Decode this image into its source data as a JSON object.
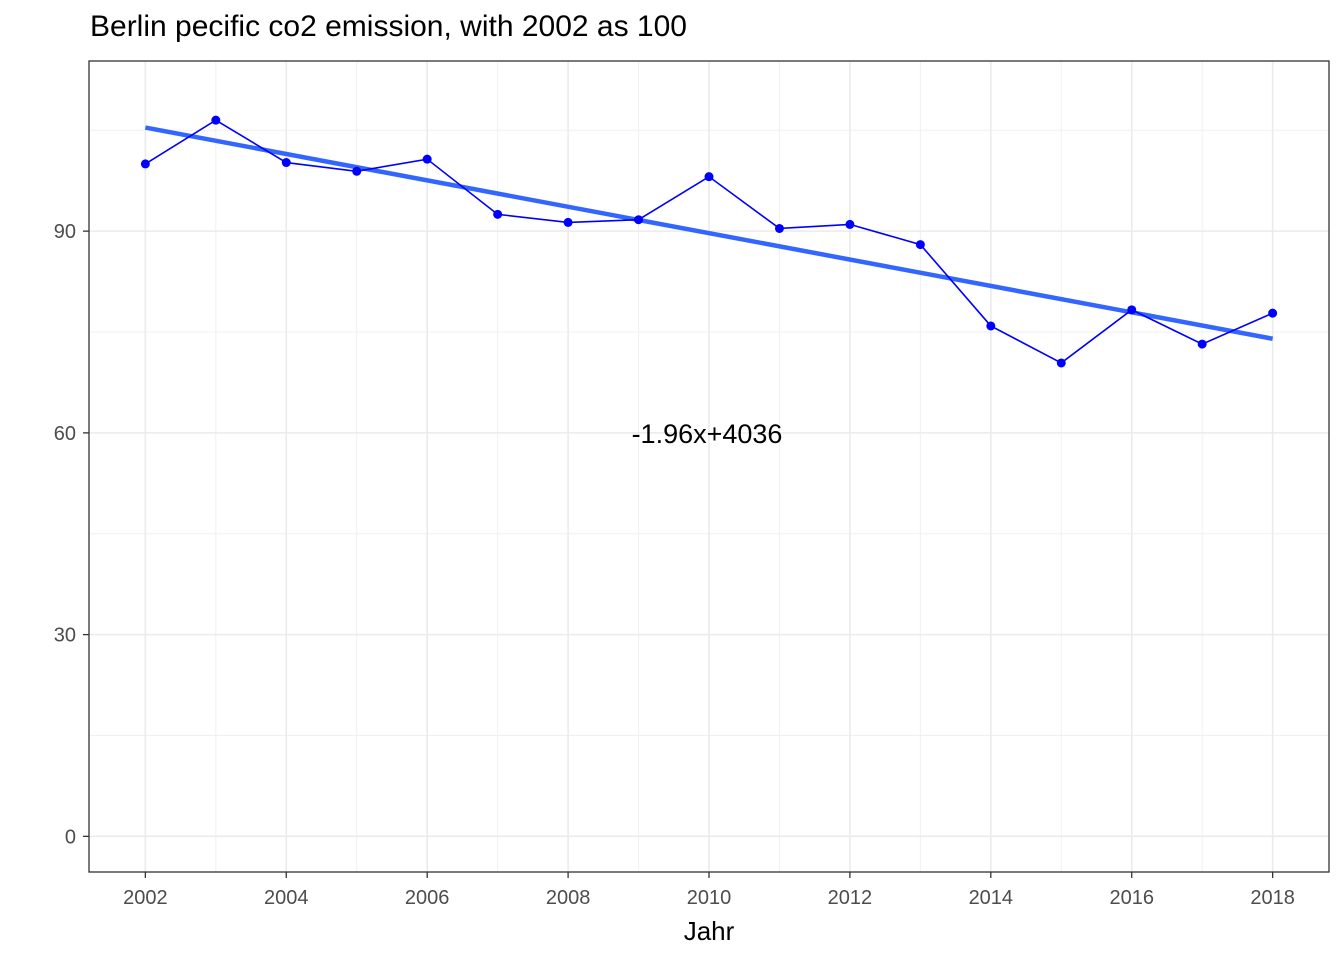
{
  "chart_data": {
    "type": "line",
    "title": "Berlin pecific co2 emission, with 2002 as 100",
    "xlabel": "Jahr",
    "ylabel": "",
    "xlim": [
      2001.2,
      2018.8
    ],
    "ylim": [
      -5.3,
      115.3
    ],
    "x_ticks": [
      2002,
      2004,
      2006,
      2008,
      2010,
      2012,
      2014,
      2016,
      2018
    ],
    "y_ticks": [
      0,
      30,
      60,
      90
    ],
    "grid": true,
    "series": [
      {
        "color": "#0000ff",
        "x": [
          2002,
          2003,
          2004,
          2005,
          2006,
          2007,
          2008,
          2009,
          2010,
          2011,
          2012,
          2013,
          2014,
          2015,
          2016,
          2017,
          2018
        ],
        "values": [
          100,
          106.5,
          100.2,
          98.9,
          100.7,
          92.5,
          91.3,
          91.7,
          98.1,
          90.4,
          91.0,
          88.0,
          75.9,
          70.4,
          78.3,
          73.2,
          77.8
        ]
      }
    ],
    "trendline": {
      "color": "#3366ff",
      "x": [
        2002,
        2018
      ],
      "values": [
        105.4,
        74.0
      ]
    },
    "annotation": {
      "text": "-1.96x+4036",
      "x": 2010,
      "y": 60
    }
  }
}
